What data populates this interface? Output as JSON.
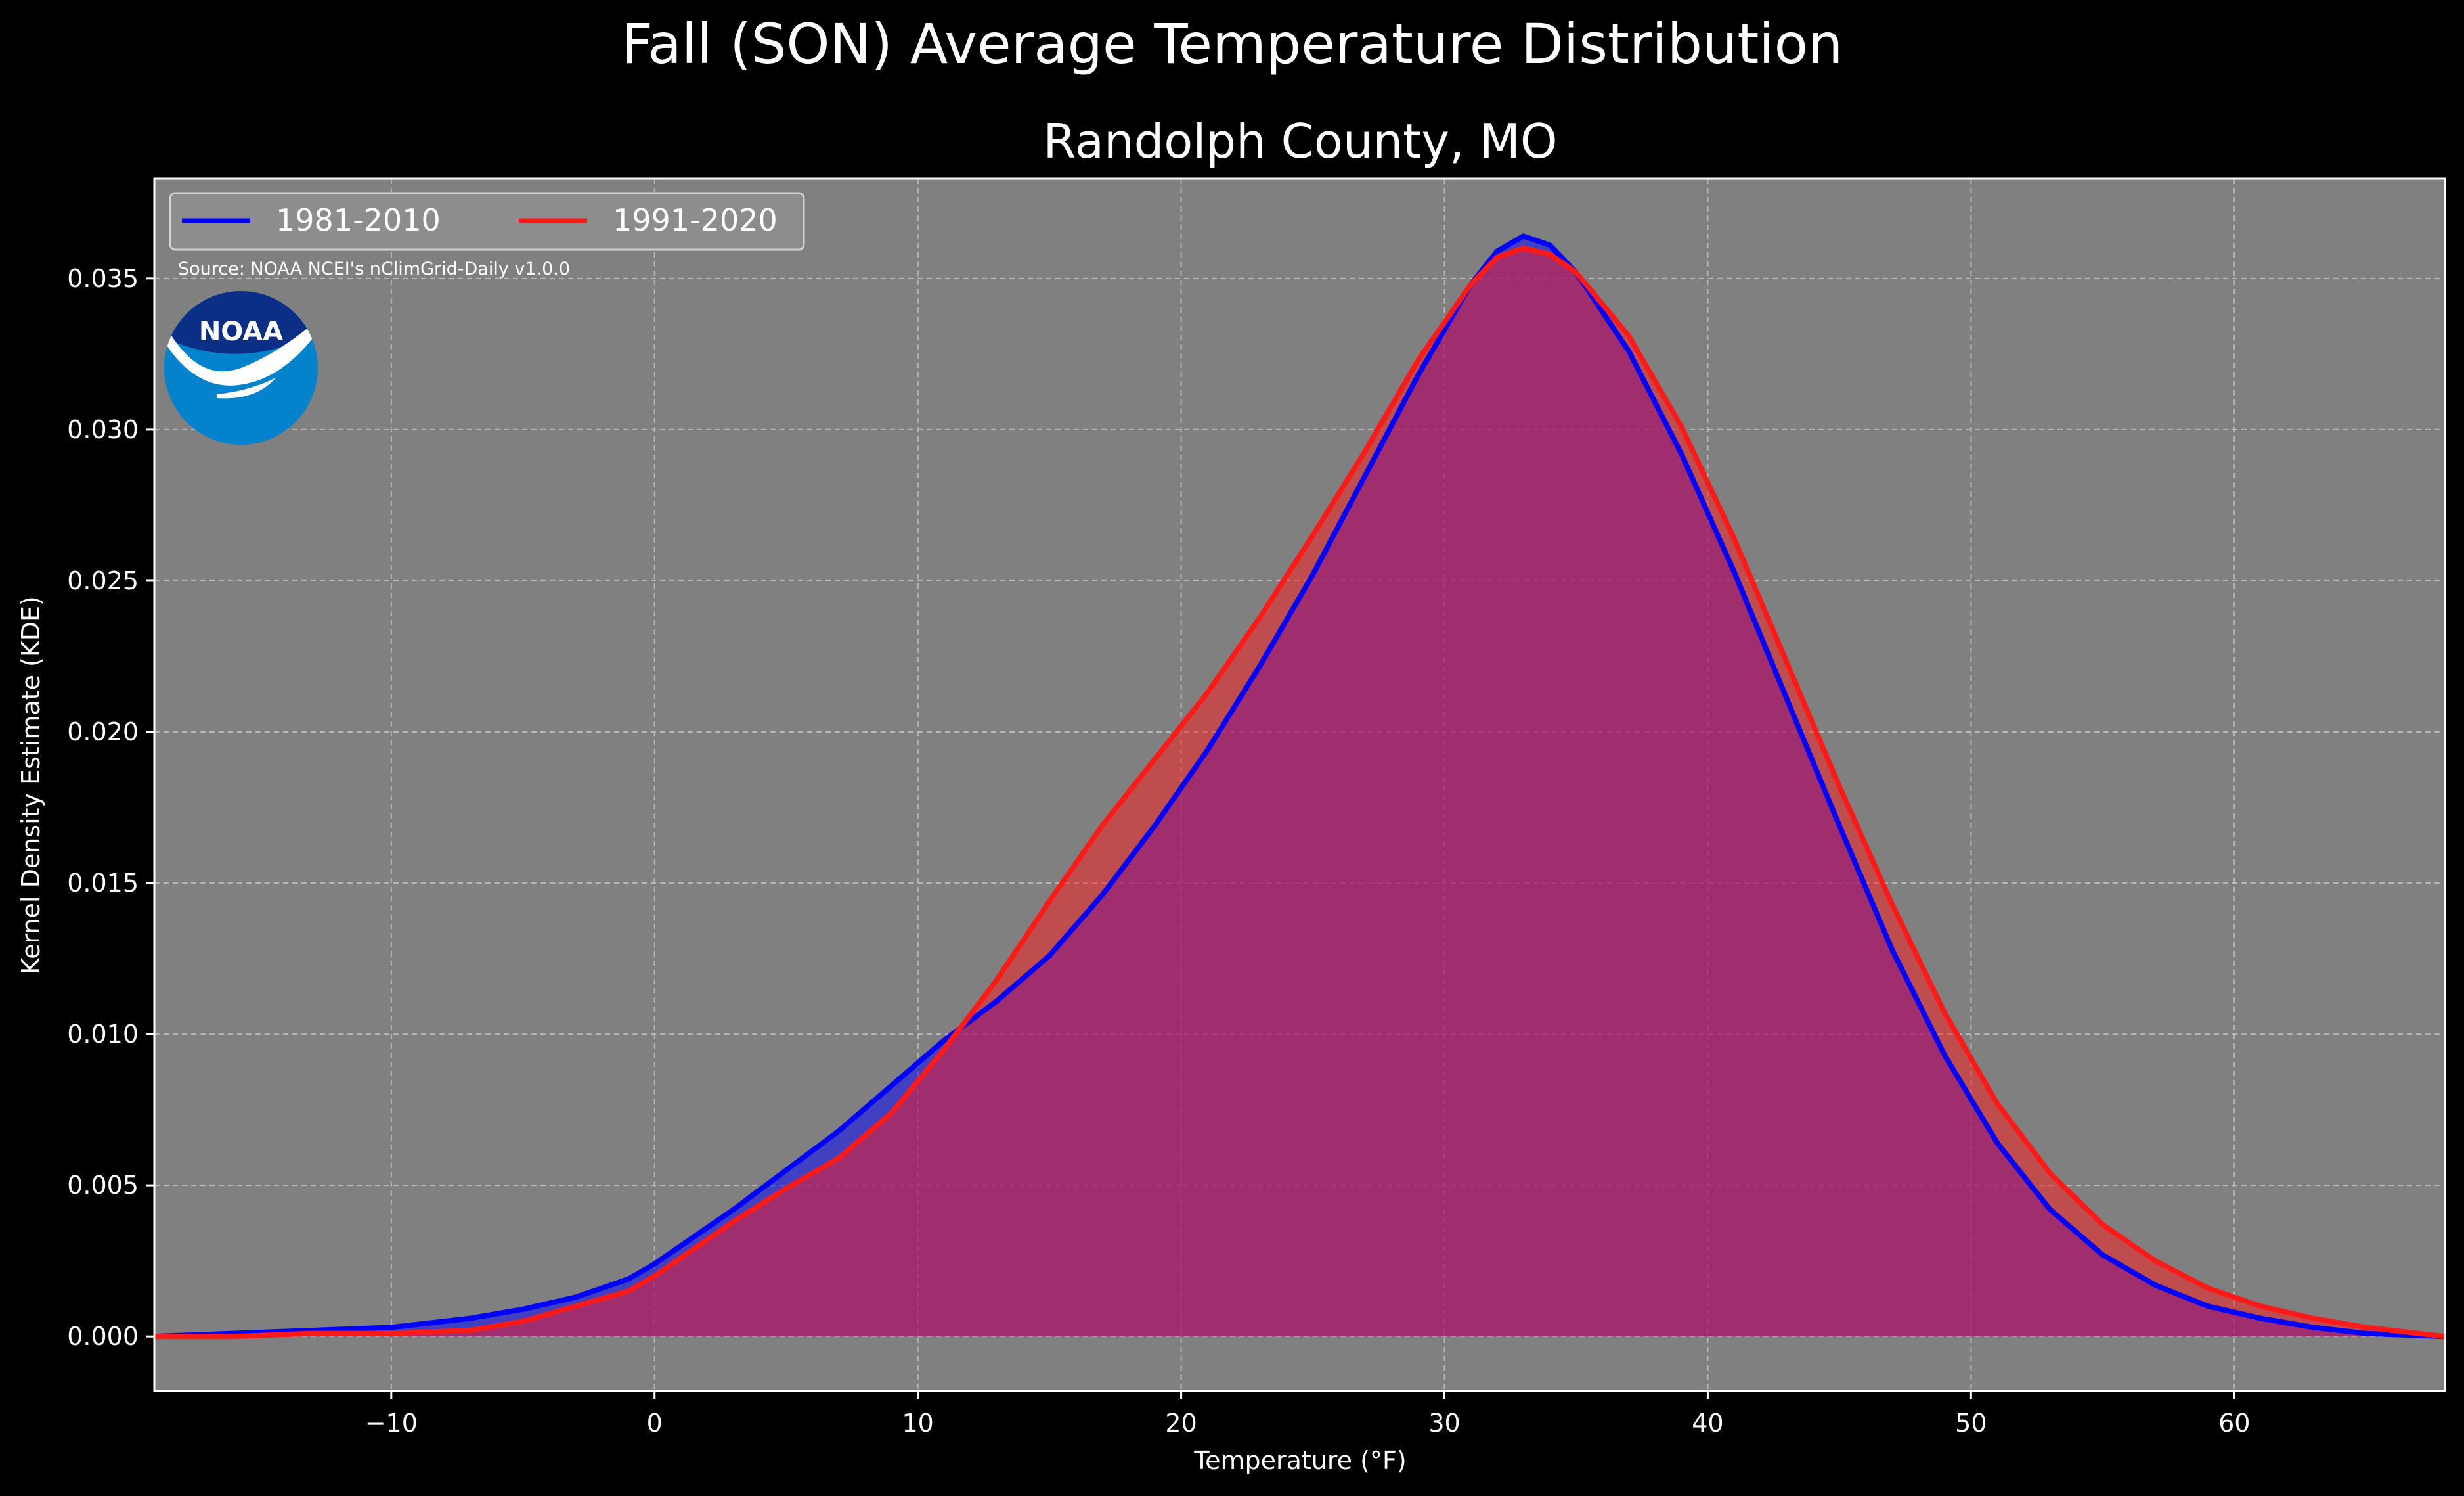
{
  "suptitle": "Fall (SON) Average Temperature Distribution",
  "source_note": "Source: NOAA NCEI's nClimGrid-Daily v1.0.0",
  "logo": {
    "name": "noaa-logo",
    "text": "NOAA",
    "colors": {
      "top": "#0b2f86",
      "bottom": "#0483cc",
      "bird": "#ffffff"
    }
  },
  "colors": {
    "background": "#000000",
    "plot_bg": "#808080",
    "grid": "#b8b8b8",
    "series_1": "#0000ff",
    "series_2": "#ff1a1a",
    "overlap": "#9c1f5e"
  },
  "chart_data": {
    "type": "area",
    "title": "Randolph County, MO",
    "xlabel": "Temperature (°F)",
    "ylabel": "Kernel Density Estimate (KDE)",
    "xlim": [
      -19,
      68
    ],
    "ylim": [
      -0.0018,
      0.0383
    ],
    "xticks": [
      -10,
      0,
      10,
      20,
      30,
      40,
      50,
      60
    ],
    "xtick_labels": [
      "−10",
      "0",
      "10",
      "20",
      "30",
      "40",
      "50",
      "60"
    ],
    "yticks": [
      0.0,
      0.005,
      0.01,
      0.015,
      0.02,
      0.025,
      0.03,
      0.035
    ],
    "ytick_labels": [
      "0.000",
      "0.005",
      "0.010",
      "0.015",
      "0.020",
      "0.025",
      "0.030",
      "0.035"
    ],
    "grid": true,
    "legend_position": "top-left",
    "series": [
      {
        "name": "1981-2010",
        "color": "#0000ff",
        "x": [
          -19,
          -16,
          -13,
          -10,
          -7,
          -5,
          -3,
          -1,
          0,
          1,
          3,
          5,
          7,
          9,
          11,
          13,
          15,
          17,
          19,
          21,
          23,
          25,
          27,
          29,
          31,
          32,
          33,
          34,
          35,
          37,
          39,
          41,
          43,
          45,
          47,
          49,
          51,
          53,
          55,
          57,
          59,
          61,
          63,
          65,
          68
        ],
        "y": [
          0.0,
          0.0001,
          0.0002,
          0.0003,
          0.0006,
          0.0009,
          0.0013,
          0.0019,
          0.0024,
          0.003,
          0.0042,
          0.0055,
          0.0068,
          0.0083,
          0.0098,
          0.0111,
          0.0126,
          0.0146,
          0.0169,
          0.0194,
          0.0222,
          0.0252,
          0.0285,
          0.0318,
          0.0348,
          0.0359,
          0.0364,
          0.0361,
          0.0352,
          0.0326,
          0.0292,
          0.0253,
          0.0211,
          0.0169,
          0.0128,
          0.0093,
          0.0064,
          0.0042,
          0.0027,
          0.0017,
          0.001,
          0.0006,
          0.0003,
          0.0001,
          0.0
        ]
      },
      {
        "name": "1991-2020",
        "color": "#ff1a1a",
        "x": [
          -19,
          -16,
          -13,
          -10,
          -7,
          -5,
          -3,
          -1,
          0,
          1,
          3,
          5,
          7,
          9,
          11,
          13,
          15,
          17,
          19,
          21,
          23,
          25,
          27,
          29,
          31,
          32,
          33,
          34,
          35,
          37,
          39,
          41,
          43,
          45,
          47,
          49,
          51,
          53,
          55,
          57,
          59,
          61,
          63,
          65,
          68
        ],
        "y": [
          0.0,
          0.0,
          0.0001,
          0.0001,
          0.0002,
          0.0005,
          0.001,
          0.0015,
          0.002,
          0.0026,
          0.0038,
          0.0049,
          0.0059,
          0.0074,
          0.0095,
          0.0118,
          0.0144,
          0.0169,
          0.0191,
          0.0213,
          0.0238,
          0.0265,
          0.0293,
          0.0323,
          0.0348,
          0.0357,
          0.036,
          0.0358,
          0.0352,
          0.0331,
          0.0301,
          0.0264,
          0.0223,
          0.0182,
          0.0143,
          0.0107,
          0.0077,
          0.0054,
          0.0037,
          0.0025,
          0.0016,
          0.001,
          0.0006,
          0.0003,
          0.0
        ]
      }
    ]
  }
}
